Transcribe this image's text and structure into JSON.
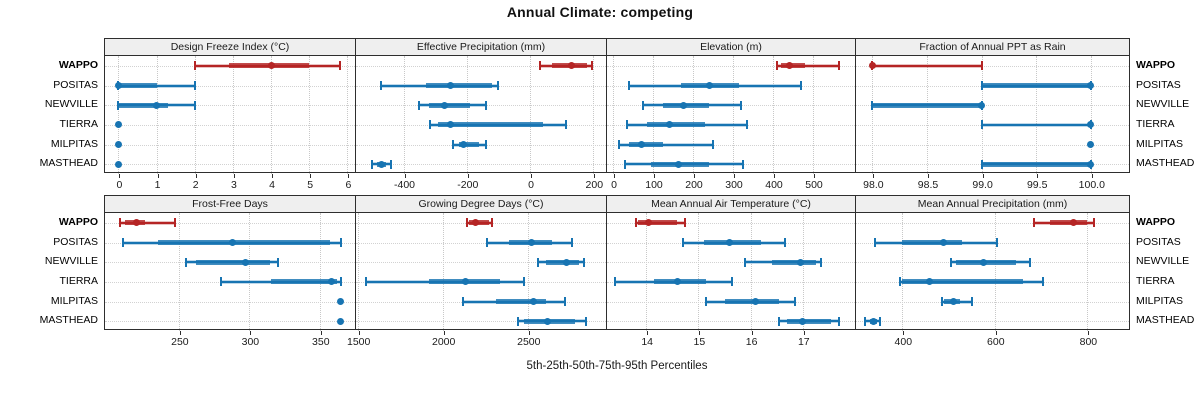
{
  "title": "Annual Climate: competing",
  "caption": "5th-25th-50th-75th-95th Percentiles",
  "percentile_labels": [
    "5th",
    "25th",
    "50th",
    "75th",
    "95th"
  ],
  "sites": [
    "WAPPO",
    "POSITAS",
    "NEWVILLE",
    "TIERRA",
    "MILPITAS",
    "MASTHEAD"
  ],
  "highlight_site": "WAPPO",
  "colors": {
    "highlight": "#b52525",
    "normal": "#1774b2",
    "strip_bg": "#efefef",
    "panel_border": "#2e2e2e",
    "gridline": "#c8c8c8",
    "text": "#111111"
  },
  "chart_data": [
    {
      "type": "dotplot-percentiles",
      "title": "Design Freeze Index (°C)",
      "row": 1,
      "xlim": [
        -0.35,
        6.2
      ],
      "ticks": [
        {
          "v": 0,
          "label": "0"
        },
        {
          "v": 1,
          "label": "1"
        },
        {
          "v": 2,
          "label": "2"
        },
        {
          "v": 3,
          "label": "3"
        },
        {
          "v": 4,
          "label": "4"
        },
        {
          "v": 5,
          "label": "5"
        },
        {
          "v": 6,
          "label": "6"
        }
      ],
      "series": [
        {
          "site": "WAPPO",
          "p": [
            2,
            2.9,
            4,
            5,
            5.8
          ]
        },
        {
          "site": "POSITAS",
          "p": [
            0,
            0,
            0,
            1,
            2
          ]
        },
        {
          "site": "NEWVILLE",
          "p": [
            0,
            0,
            1,
            1.3,
            2
          ]
        },
        {
          "site": "TIERRA",
          "p": [
            0,
            0,
            0,
            0,
            0
          ]
        },
        {
          "site": "MILPITAS",
          "p": [
            0,
            0,
            0,
            0,
            0
          ]
        },
        {
          "site": "MASTHEAD",
          "p": [
            0,
            0,
            0,
            0,
            0
          ]
        }
      ]
    },
    {
      "type": "dotplot-percentiles",
      "title": "Effective Precipitation (mm)",
      "row": 1,
      "xlim": [
        -550,
        240
      ],
      "ticks": [
        {
          "v": -400,
          "label": "-400"
        },
        {
          "v": -200,
          "label": "-200"
        },
        {
          "v": 0,
          "label": "0"
        },
        {
          "v": 200,
          "label": "200"
        }
      ],
      "series": [
        {
          "site": "WAPPO",
          "p": [
            30,
            70,
            130,
            180,
            195
          ]
        },
        {
          "site": "POSITAS",
          "p": [
            -470,
            -330,
            -250,
            -120,
            -100
          ]
        },
        {
          "site": "NEWVILLE",
          "p": [
            -350,
            -320,
            -270,
            -190,
            -140
          ]
        },
        {
          "site": "TIERRA",
          "p": [
            -315,
            -290,
            -250,
            40,
            115
          ]
        },
        {
          "site": "MILPITAS",
          "p": [
            -245,
            -225,
            -210,
            -160,
            -140
          ]
        },
        {
          "site": "MASTHEAD",
          "p": [
            -500,
            -485,
            -470,
            -455,
            -440
          ]
        }
      ]
    },
    {
      "type": "dotplot-percentiles",
      "title": "Elevation (m)",
      "row": 1,
      "xlim": [
        -15,
        605
      ],
      "ticks": [
        {
          "v": 0,
          "label": "0"
        },
        {
          "v": 100,
          "label": "100"
        },
        {
          "v": 200,
          "label": "200"
        },
        {
          "v": 300,
          "label": "300"
        },
        {
          "v": 400,
          "label": "400"
        },
        {
          "v": 500,
          "label": "500"
        }
      ],
      "series": [
        {
          "site": "WAPPO",
          "p": [
            410,
            420,
            440,
            480,
            565
          ]
        },
        {
          "site": "POSITAS",
          "p": [
            40,
            170,
            240,
            315,
            470
          ]
        },
        {
          "site": "NEWVILLE",
          "p": [
            75,
            125,
            175,
            240,
            320
          ]
        },
        {
          "site": "TIERRA",
          "p": [
            35,
            85,
            140,
            230,
            335
          ]
        },
        {
          "site": "MILPITAS",
          "p": [
            15,
            40,
            72,
            125,
            250
          ]
        },
        {
          "site": "MASTHEAD",
          "p": [
            30,
            95,
            163,
            240,
            325
          ]
        }
      ]
    },
    {
      "type": "dotplot-percentiles",
      "title": "Fraction of Annual PPT as Rain",
      "row": 1,
      "xlim": [
        97.85,
        100.35
      ],
      "ticks": [
        {
          "v": 98,
          "label": "98.0"
        },
        {
          "v": 98.5,
          "label": "98.5"
        },
        {
          "v": 99,
          "label": "99.0"
        },
        {
          "v": 99.5,
          "label": "99.5"
        },
        {
          "v": 100,
          "label": "100.0"
        }
      ],
      "series": [
        {
          "site": "WAPPO",
          "p": [
            98,
            98,
            98,
            98,
            99
          ]
        },
        {
          "site": "POSITAS",
          "p": [
            99,
            99,
            100,
            100,
            100
          ]
        },
        {
          "site": "NEWVILLE",
          "p": [
            98,
            98,
            99,
            99,
            99
          ]
        },
        {
          "site": "TIERRA",
          "p": [
            99,
            100,
            100,
            100,
            100
          ]
        },
        {
          "site": "MILPITAS",
          "p": [
            100,
            100,
            100,
            100,
            100
          ]
        },
        {
          "site": "MASTHEAD",
          "p": [
            99,
            99,
            100,
            100,
            100
          ]
        }
      ]
    },
    {
      "type": "dotplot-percentiles",
      "title": "Frost-Free Days",
      "row": 2,
      "xlim": [
        197.5,
        375
      ],
      "ticks": [
        {
          "v": 250,
          "label": "250"
        },
        {
          "v": 300,
          "label": "300"
        },
        {
          "v": 350,
          "label": "350"
        }
      ],
      "series": [
        {
          "site": "WAPPO",
          "p": [
            208,
            212,
            220,
            226,
            247
          ]
        },
        {
          "site": "POSITAS",
          "p": [
            210,
            235,
            288,
            357,
            365
          ]
        },
        {
          "site": "NEWVILLE",
          "p": [
            255,
            262,
            297,
            315,
            320
          ]
        },
        {
          "site": "TIERRA",
          "p": [
            280,
            315,
            358,
            362,
            365
          ]
        },
        {
          "site": "MILPITAS",
          "p": [
            365,
            365,
            365,
            365,
            365
          ]
        },
        {
          "site": "MASTHEAD",
          "p": [
            365,
            365,
            365,
            365,
            365
          ]
        }
      ]
    },
    {
      "type": "dotplot-percentiles",
      "title": "Growing Degree Days (°C)",
      "row": 2,
      "xlim": [
        1490,
        2960
      ],
      "ticks": [
        {
          "v": 1500,
          "label": "1500"
        },
        {
          "v": 2000,
          "label": "2000"
        },
        {
          "v": 2500,
          "label": "2500"
        }
      ],
      "series": [
        {
          "site": "WAPPO",
          "p": [
            2140,
            2155,
            2195,
            2270,
            2290
          ]
        },
        {
          "site": "POSITAS",
          "p": [
            2260,
            2390,
            2520,
            2640,
            2760
          ]
        },
        {
          "site": "NEWVILLE",
          "p": [
            2560,
            2605,
            2730,
            2800,
            2830
          ]
        },
        {
          "site": "TIERRA",
          "p": [
            1550,
            1920,
            2135,
            2340,
            2480
          ]
        },
        {
          "site": "MILPITAS",
          "p": [
            2120,
            2310,
            2535,
            2605,
            2720
          ]
        },
        {
          "site": "MASTHEAD",
          "p": [
            2445,
            2475,
            2615,
            2780,
            2845
          ]
        }
      ]
    },
    {
      "type": "dotplot-percentiles",
      "title": "Mean Annual Air Temperature (°C)",
      "row": 2,
      "xlim": [
        13.25,
        18.0
      ],
      "ticks": [
        {
          "v": 14,
          "label": "14"
        },
        {
          "v": 15,
          "label": "15"
        },
        {
          "v": 16,
          "label": "16"
        },
        {
          "v": 17,
          "label": "17"
        }
      ],
      "series": [
        {
          "site": "WAPPO",
          "p": [
            13.8,
            13.85,
            14.05,
            14.6,
            14.75
          ]
        },
        {
          "site": "POSITAS",
          "p": [
            14.7,
            15.1,
            15.6,
            16.2,
            16.65
          ]
        },
        {
          "site": "NEWVILLE",
          "p": [
            15.9,
            16.4,
            16.95,
            17.25,
            17.35
          ]
        },
        {
          "site": "TIERRA",
          "p": [
            13.4,
            14.15,
            14.6,
            15.15,
            15.65
          ]
        },
        {
          "site": "MILPITAS",
          "p": [
            15.15,
            15.5,
            16.1,
            16.55,
            16.85
          ]
        },
        {
          "site": "MASTHEAD",
          "p": [
            16.55,
            16.7,
            17.0,
            17.55,
            17.7
          ]
        }
      ]
    },
    {
      "type": "dotplot-percentiles",
      "title": "Mean Annual Precipitation (mm)",
      "row": 2,
      "xlim": [
        300,
        890
      ],
      "ticks": [
        {
          "v": 400,
          "label": "400"
        },
        {
          "v": 600,
          "label": "600"
        },
        {
          "v": 800,
          "label": "800"
        }
      ],
      "series": [
        {
          "site": "WAPPO",
          "p": [
            685,
            720,
            770,
            800,
            815
          ]
        },
        {
          "site": "POSITAS",
          "p": [
            340,
            400,
            490,
            530,
            605
          ]
        },
        {
          "site": "NEWVILLE",
          "p": [
            505,
            515,
            575,
            645,
            675
          ]
        },
        {
          "site": "TIERRA",
          "p": [
            395,
            400,
            458,
            660,
            705
          ]
        },
        {
          "site": "MILPITAS",
          "p": [
            485,
            490,
            510,
            525,
            550
          ]
        },
        {
          "site": "MASTHEAD",
          "p": [
            320,
            330,
            338,
            346,
            352
          ]
        }
      ]
    }
  ]
}
